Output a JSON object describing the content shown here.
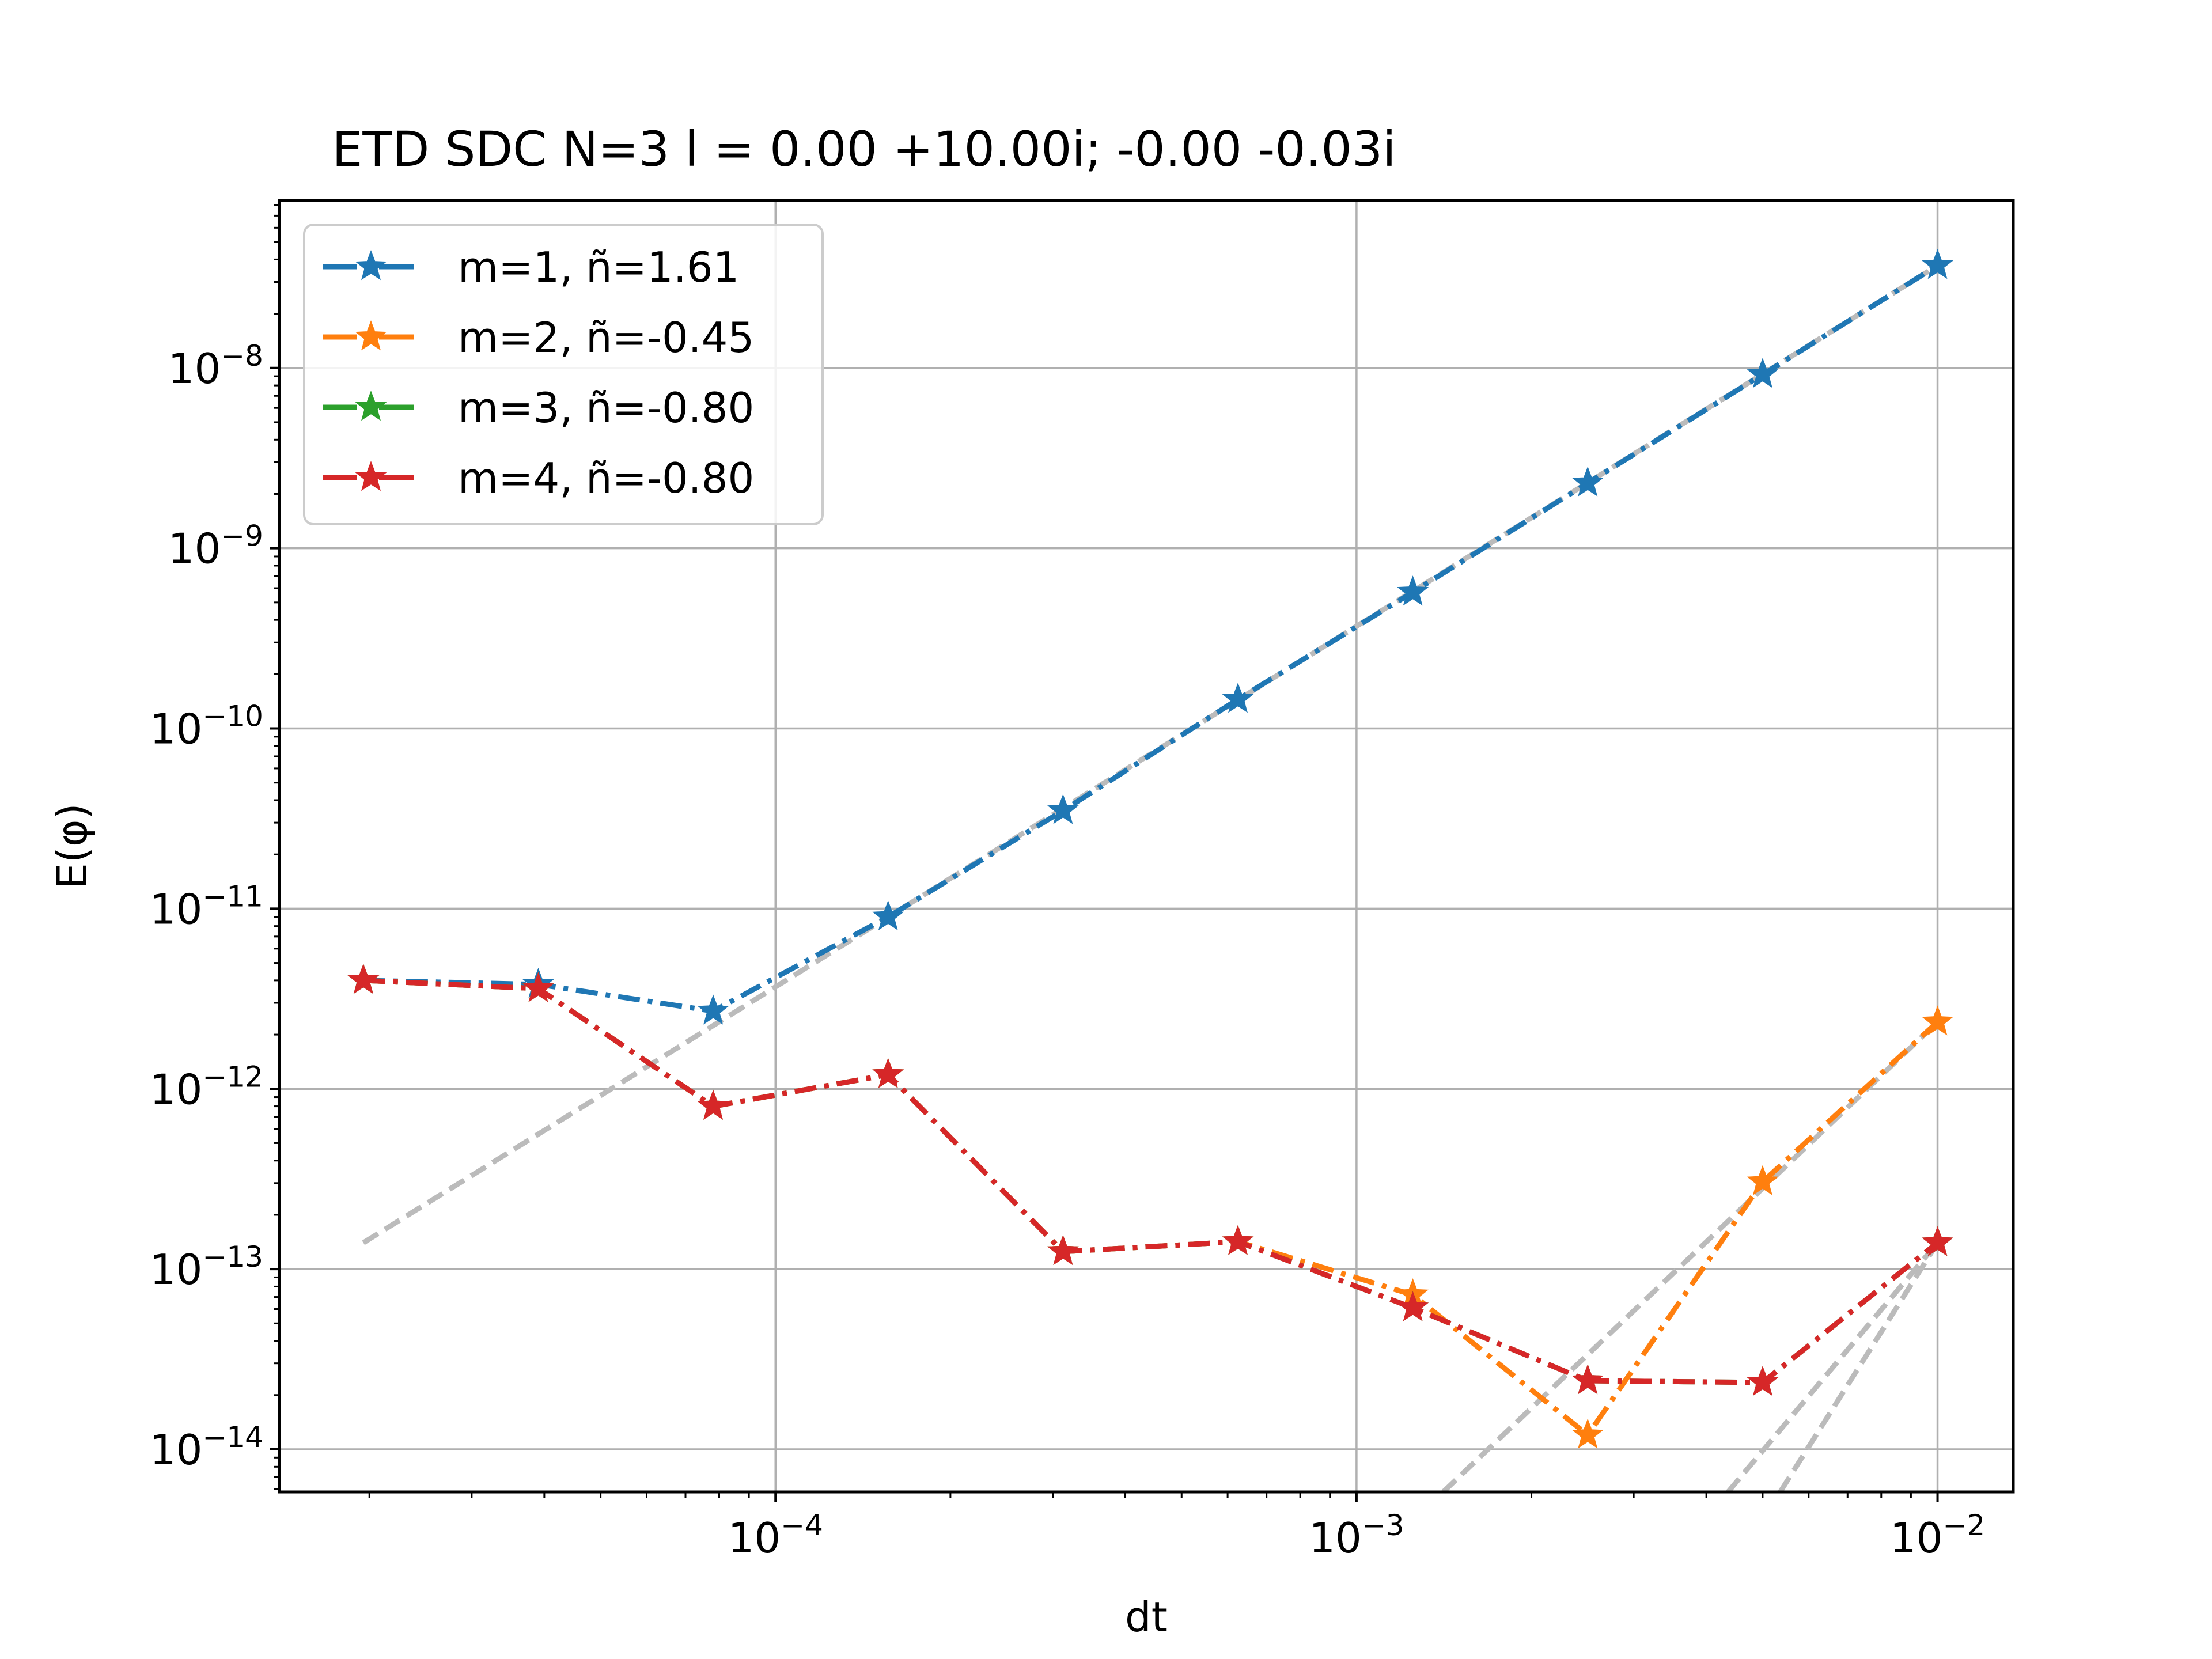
{
  "chart_data": {
    "type": "line",
    "title": "ETD SDC N=3 l = 0.00 +10.00i; -0.00 -0.03i",
    "xlabel": "dt",
    "ylabel": "E(φ)",
    "xscale": "log",
    "yscale": "log",
    "xlim": [
      1.4e-05,
      0.0135
    ],
    "ylim": [
      5.8e-15,
      8.5e-08
    ],
    "grid": true,
    "legend_position": "upper left",
    "x_ticks": [
      {
        "value": 0.0001,
        "base": "10",
        "exp": "−4"
      },
      {
        "value": 0.001,
        "base": "10",
        "exp": "−3"
      },
      {
        "value": 0.01,
        "base": "10",
        "exp": "−2"
      }
    ],
    "y_ticks": [
      {
        "value": 1e-14,
        "base": "10",
        "exp": "−14"
      },
      {
        "value": 1e-13,
        "base": "10",
        "exp": "−13"
      },
      {
        "value": 1e-12,
        "base": "10",
        "exp": "−12"
      },
      {
        "value": 1e-11,
        "base": "10",
        "exp": "−11"
      },
      {
        "value": 1e-10,
        "base": "10",
        "exp": "−10"
      },
      {
        "value": 1e-09,
        "base": "10",
        "exp": "−9"
      },
      {
        "value": 1e-08,
        "base": "10",
        "exp": "−8"
      }
    ],
    "x": [
      1.953e-05,
      3.906e-05,
      7.8125e-05,
      0.00015625,
      0.0003125,
      0.000625,
      0.00125,
      0.0025,
      0.005,
      0.01
    ],
    "series": [
      {
        "name": "m=1, ñ=1.61",
        "color": "#1f77b4",
        "values": [
          4e-12,
          3.8e-12,
          2.7e-12,
          9e-12,
          3.5e-11,
          1.45e-10,
          5.7e-10,
          2.3e-09,
          9.2e-09,
          3.7e-08
        ]
      },
      {
        "name": "m=2, ñ=-0.45",
        "color": "#ff7f0e",
        "values": [
          4e-12,
          3.6e-12,
          8e-13,
          1.2e-12,
          1.25e-13,
          1.42e-13,
          7.2e-14,
          1.2e-14,
          3.05e-13,
          2.35e-12
        ]
      },
      {
        "name": "m=3, ñ=-0.80",
        "color": "#2ca02c",
        "values": [
          4e-12,
          3.6e-12,
          8e-13,
          1.2e-12,
          1.25e-13,
          1.42e-13,
          6.1e-14,
          2.4e-14,
          2.35e-14,
          1.4e-13
        ]
      },
      {
        "name": "m=4, ñ=-0.80",
        "color": "#d62728",
        "values": [
          4e-12,
          3.6e-12,
          8e-13,
          1.2e-12,
          1.25e-13,
          1.42e-13,
          6.1e-14,
          2.4e-14,
          2.35e-14,
          1.4e-13
        ]
      }
    ],
    "reference_lines": [
      {
        "color": "#bbbbbb",
        "points": [
          [
            1.953e-05,
            1.4e-13
          ],
          [
            0.01,
            3.7e-08
          ]
        ]
      },
      {
        "color": "#bbbbbb",
        "points": [
          [
            0.00141,
            5.8e-15
          ],
          [
            0.01,
            2.35e-12
          ]
        ]
      },
      {
        "color": "#bbbbbb",
        "points": [
          [
            0.00436,
            5.8e-15
          ],
          [
            0.01,
            1.4e-13
          ]
        ]
      },
      {
        "color": "#bbbbbb",
        "points": [
          [
            0.00536,
            5.8e-15
          ],
          [
            0.01,
            1.4e-13
          ]
        ]
      }
    ]
  }
}
